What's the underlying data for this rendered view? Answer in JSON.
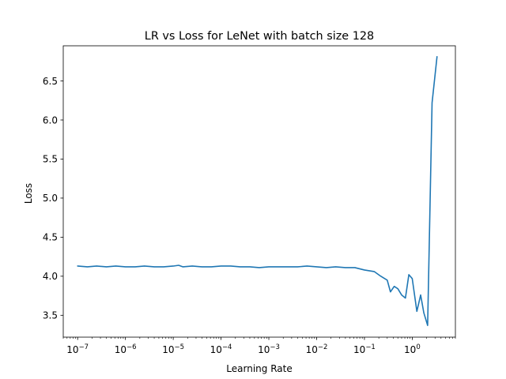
{
  "chart_data": {
    "type": "line",
    "title": "LR vs Loss for LeNet with batch size 128",
    "xlabel": "Learning Rate",
    "ylabel": "Loss",
    "xscale": "log",
    "xlim": [
      5e-08,
      8.0
    ],
    "ylim": [
      3.22,
      6.95
    ],
    "grid": false,
    "line_color": "#1f77b4",
    "x_ticks": [
      {
        "value": 1e-07,
        "base": "10",
        "exp": "−7"
      },
      {
        "value": 1e-06,
        "base": "10",
        "exp": "−6"
      },
      {
        "value": 1e-05,
        "base": "10",
        "exp": "−5"
      },
      {
        "value": 0.0001,
        "base": "10",
        "exp": "−4"
      },
      {
        "value": 0.001,
        "base": "10",
        "exp": "−3"
      },
      {
        "value": 0.01,
        "base": "10",
        "exp": "−2"
      },
      {
        "value": 0.1,
        "base": "10",
        "exp": "−1"
      },
      {
        "value": 1,
        "base": "10",
        "exp": "0"
      }
    ],
    "y_ticks": [
      {
        "value": 3.5,
        "label": "3.5"
      },
      {
        "value": 4.0,
        "label": "4.0"
      },
      {
        "value": 4.5,
        "label": "4.5"
      },
      {
        "value": 5.0,
        "label": "5.0"
      },
      {
        "value": 5.5,
        "label": "5.5"
      },
      {
        "value": 6.0,
        "label": "6.0"
      },
      {
        "value": 6.5,
        "label": "6.5"
      }
    ],
    "series": [
      {
        "x": [
          1e-07,
          1.6e-07,
          2.5e-07,
          4e-07,
          6.3e-07,
          1e-06,
          1.6e-06,
          2.5e-06,
          4e-06,
          6.3e-06,
          1e-05,
          1.3e-05,
          1.6e-05,
          2.5e-05,
          4e-05,
          6.3e-05,
          0.0001,
          0.00016,
          0.00025,
          0.0004,
          0.00063,
          0.001,
          0.0016,
          0.0025,
          0.004,
          0.0063,
          0.01,
          0.016,
          0.025,
          0.04,
          0.063,
          0.1,
          0.16,
          0.22,
          0.3,
          0.35,
          0.42,
          0.5,
          0.6,
          0.72,
          0.85,
          1.0,
          1.25,
          1.5,
          1.75,
          2.1,
          2.6,
          3.3
        ],
        "y": [
          4.13,
          4.12,
          4.13,
          4.12,
          4.13,
          4.12,
          4.12,
          4.13,
          4.12,
          4.12,
          4.13,
          4.14,
          4.12,
          4.13,
          4.12,
          4.12,
          4.13,
          4.13,
          4.12,
          4.12,
          4.11,
          4.12,
          4.12,
          4.12,
          4.12,
          4.13,
          4.12,
          4.11,
          4.12,
          4.11,
          4.11,
          4.08,
          4.06,
          4.0,
          3.95,
          3.8,
          3.87,
          3.84,
          3.76,
          3.72,
          4.02,
          3.97,
          3.55,
          3.76,
          3.53,
          3.37,
          6.22,
          6.81
        ]
      }
    ]
  }
}
